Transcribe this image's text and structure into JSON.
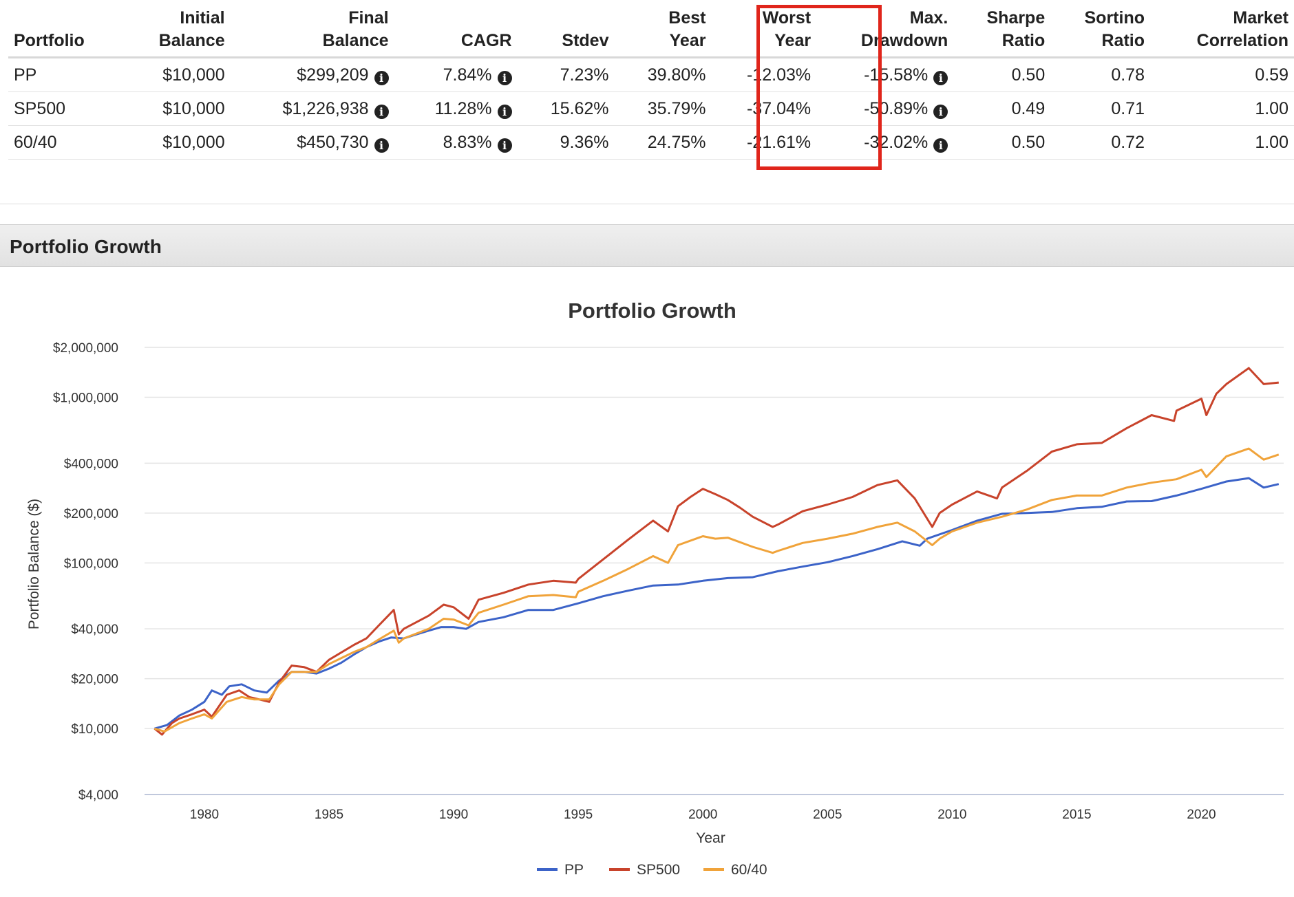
{
  "table": {
    "headers": [
      [
        "",
        "Portfolio"
      ],
      [
        "Initial",
        "Balance"
      ],
      [
        "Final",
        "Balance"
      ],
      [
        "",
        "CAGR"
      ],
      [
        "",
        "Stdev"
      ],
      [
        "Best",
        "Year"
      ],
      [
        "Worst",
        "Year"
      ],
      [
        "Max.",
        "Drawdown"
      ],
      [
        "Sharpe",
        "Ratio"
      ],
      [
        "Sortino",
        "Ratio"
      ],
      [
        "Market",
        "Correlation"
      ]
    ],
    "rows": [
      {
        "portfolio": "PP",
        "initial": "$10,000",
        "final": "$299,209",
        "cagr": "7.84%",
        "stdev": "7.23%",
        "best": "39.80%",
        "worst": "-12.03%",
        "drawdown": "-15.58%",
        "sharpe": "0.50",
        "sortino": "0.78",
        "corr": "0.59"
      },
      {
        "portfolio": "SP500",
        "initial": "$10,000",
        "final": "$1,226,938",
        "cagr": "11.28%",
        "stdev": "15.62%",
        "best": "35.79%",
        "worst": "-37.04%",
        "drawdown": "-50.89%",
        "sharpe": "0.49",
        "sortino": "0.71",
        "corr": "1.00"
      },
      {
        "portfolio": "60/40",
        "initial": "$10,000",
        "final": "$450,730",
        "cagr": "8.83%",
        "stdev": "9.36%",
        "best": "24.75%",
        "worst": "-21.61%",
        "drawdown": "-32.02%",
        "sharpe": "0.50",
        "sortino": "0.72",
        "corr": "1.00"
      }
    ],
    "highlight_color": "#e0251b",
    "info_icon": "info-circle-icon"
  },
  "section": {
    "title": "Portfolio Growth"
  },
  "chart_data": {
    "type": "line",
    "title": "Portfolio Growth",
    "xlabel": "Year",
    "ylabel": "Portfolio Balance ($)",
    "yscale": "log",
    "ylim": [
      4000,
      2000000
    ],
    "xlim": [
      1977.6,
      2023.3
    ],
    "yticks": [
      4000,
      10000,
      20000,
      40000,
      100000,
      200000,
      400000,
      1000000,
      2000000
    ],
    "ytick_labels": [
      "$4,000",
      "$10,000",
      "$20,000",
      "$40,000",
      "$100,000",
      "$200,000",
      "$400,000",
      "$1,000,000",
      "$2,000,000"
    ],
    "xticks": [
      1980,
      1985,
      1990,
      1995,
      2000,
      2005,
      2010,
      2015,
      2020
    ],
    "xtick_labels": [
      "1980",
      "1985",
      "1990",
      "1995",
      "2000",
      "2005",
      "2010",
      "2015",
      "2020"
    ],
    "legend_position": "bottom-center",
    "series": [
      {
        "name": "PP",
        "color": "#3c63c8",
        "points": [
          [
            1978,
            10000
          ],
          [
            1978.5,
            10500
          ],
          [
            1979,
            12000
          ],
          [
            1979.5,
            13000
          ],
          [
            1980,
            14500
          ],
          [
            1980.3,
            17000
          ],
          [
            1980.7,
            16000
          ],
          [
            1981,
            18000
          ],
          [
            1981.5,
            18500
          ],
          [
            1982,
            17000
          ],
          [
            1982.5,
            16500
          ],
          [
            1983,
            19500
          ],
          [
            1983.5,
            22000
          ],
          [
            1984,
            22000
          ],
          [
            1984.5,
            21500
          ],
          [
            1985,
            23000
          ],
          [
            1985.5,
            25000
          ],
          [
            1986,
            28000
          ],
          [
            1986.5,
            31000
          ],
          [
            1987,
            33500
          ],
          [
            1987.5,
            35500
          ],
          [
            1988,
            35000
          ],
          [
            1988.5,
            37000
          ],
          [
            1989,
            39000
          ],
          [
            1989.5,
            41000
          ],
          [
            1990,
            41000
          ],
          [
            1990.5,
            40000
          ],
          [
            1991,
            44000
          ],
          [
            1992,
            47000
          ],
          [
            1993,
            52000
          ],
          [
            1994,
            52000
          ],
          [
            1995,
            57000
          ],
          [
            1996,
            63000
          ],
          [
            1997,
            68000
          ],
          [
            1998,
            73000
          ],
          [
            1999,
            74000
          ],
          [
            2000,
            78000
          ],
          [
            2001,
            81000
          ],
          [
            2002,
            82000
          ],
          [
            2003,
            89000
          ],
          [
            2004,
            95000
          ],
          [
            2005,
            101000
          ],
          [
            2006,
            110000
          ],
          [
            2007,
            121000
          ],
          [
            2008,
            135000
          ],
          [
            2008.7,
            127000
          ],
          [
            2009,
            140000
          ],
          [
            2010,
            158000
          ],
          [
            2011,
            180000
          ],
          [
            2012,
            198000
          ],
          [
            2013,
            200000
          ],
          [
            2014,
            203000
          ],
          [
            2015,
            214000
          ],
          [
            2016,
            218000
          ],
          [
            2017,
            235000
          ],
          [
            2018,
            236000
          ],
          [
            2019,
            255000
          ],
          [
            2020,
            280000
          ],
          [
            2021,
            310000
          ],
          [
            2021.9,
            325000
          ],
          [
            2022.5,
            285000
          ],
          [
            2023.1,
            299209
          ]
        ]
      },
      {
        "name": "SP500",
        "color": "#c8432b",
        "points": [
          [
            1978,
            10000
          ],
          [
            1978.3,
            9200
          ],
          [
            1978.7,
            10800
          ],
          [
            1979,
            11500
          ],
          [
            1979.5,
            12200
          ],
          [
            1980,
            13000
          ],
          [
            1980.3,
            11800
          ],
          [
            1980.9,
            16000
          ],
          [
            1981.4,
            17000
          ],
          [
            1981.8,
            15500
          ],
          [
            1982.6,
            14500
          ],
          [
            1983,
            19000
          ],
          [
            1983.5,
            24000
          ],
          [
            1984,
            23500
          ],
          [
            1984.5,
            22000
          ],
          [
            1985,
            26000
          ],
          [
            1986,
            32000
          ],
          [
            1986.5,
            35000
          ],
          [
            1987,
            42000
          ],
          [
            1987.6,
            52000
          ],
          [
            1987.8,
            37000
          ],
          [
            1988,
            40000
          ],
          [
            1989,
            48000
          ],
          [
            1989.6,
            56000
          ],
          [
            1990,
            54000
          ],
          [
            1990.6,
            46000
          ],
          [
            1991,
            60000
          ],
          [
            1992,
            66000
          ],
          [
            1993,
            74000
          ],
          [
            1994,
            78000
          ],
          [
            1994.9,
            76000
          ],
          [
            1995,
            80000
          ],
          [
            1996,
            105000
          ],
          [
            1997,
            138000
          ],
          [
            1998,
            180000
          ],
          [
            1998.6,
            155000
          ],
          [
            1999,
            220000
          ],
          [
            1999.5,
            250000
          ],
          [
            2000,
            280000
          ],
          [
            2000.5,
            260000
          ],
          [
            2001,
            240000
          ],
          [
            2001.5,
            215000
          ],
          [
            2002,
            190000
          ],
          [
            2002.8,
            165000
          ],
          [
            2003,
            170000
          ],
          [
            2004,
            205000
          ],
          [
            2005,
            225000
          ],
          [
            2006,
            250000
          ],
          [
            2007,
            295000
          ],
          [
            2007.8,
            315000
          ],
          [
            2008.5,
            245000
          ],
          [
            2009.2,
            165000
          ],
          [
            2009.5,
            200000
          ],
          [
            2010,
            225000
          ],
          [
            2011,
            270000
          ],
          [
            2011.8,
            245000
          ],
          [
            2012,
            285000
          ],
          [
            2013,
            360000
          ],
          [
            2014,
            470000
          ],
          [
            2015,
            520000
          ],
          [
            2016,
            530000
          ],
          [
            2017,
            650000
          ],
          [
            2018,
            780000
          ],
          [
            2018.9,
            720000
          ],
          [
            2019,
            830000
          ],
          [
            2020,
            980000
          ],
          [
            2020.2,
            780000
          ],
          [
            2020.6,
            1050000
          ],
          [
            2021,
            1200000
          ],
          [
            2021.9,
            1500000
          ],
          [
            2022.5,
            1200000
          ],
          [
            2023.1,
            1226938
          ]
        ]
      },
      {
        "name": "60/40",
        "color": "#f0a33a",
        "points": [
          [
            1978,
            10000
          ],
          [
            1978.4,
            9600
          ],
          [
            1979,
            10800
          ],
          [
            1979.5,
            11500
          ],
          [
            1980,
            12200
          ],
          [
            1980.3,
            11500
          ],
          [
            1980.9,
            14500
          ],
          [
            1981.5,
            15500
          ],
          [
            1982,
            15000
          ],
          [
            1982.6,
            15000
          ],
          [
            1983,
            18500
          ],
          [
            1983.5,
            22000
          ],
          [
            1984,
            22000
          ],
          [
            1984.5,
            22000
          ],
          [
            1985,
            24500
          ],
          [
            1986,
            29000
          ],
          [
            1986.5,
            31000
          ],
          [
            1987,
            34500
          ],
          [
            1987.6,
            39000
          ],
          [
            1987.8,
            33000
          ],
          [
            1988,
            35000
          ],
          [
            1989,
            40000
          ],
          [
            1989.6,
            46000
          ],
          [
            1990,
            45500
          ],
          [
            1990.6,
            42000
          ],
          [
            1991,
            50000
          ],
          [
            1992,
            56000
          ],
          [
            1993,
            63000
          ],
          [
            1994,
            64000
          ],
          [
            1994.9,
            62000
          ],
          [
            1995,
            67000
          ],
          [
            1996,
            78000
          ],
          [
            1997,
            92000
          ],
          [
            1998,
            110000
          ],
          [
            1998.6,
            100000
          ],
          [
            1999,
            128000
          ],
          [
            2000,
            145000
          ],
          [
            2000.5,
            140000
          ],
          [
            2001,
            142000
          ],
          [
            2002,
            125000
          ],
          [
            2002.8,
            115000
          ],
          [
            2003,
            118000
          ],
          [
            2004,
            132000
          ],
          [
            2005,
            140000
          ],
          [
            2006,
            150000
          ],
          [
            2007,
            165000
          ],
          [
            2007.8,
            175000
          ],
          [
            2008.5,
            155000
          ],
          [
            2009.2,
            128000
          ],
          [
            2009.5,
            140000
          ],
          [
            2010,
            155000
          ],
          [
            2011,
            175000
          ],
          [
            2012,
            190000
          ],
          [
            2013,
            210000
          ],
          [
            2014,
            240000
          ],
          [
            2015,
            255000
          ],
          [
            2016,
            255000
          ],
          [
            2017,
            285000
          ],
          [
            2018,
            305000
          ],
          [
            2019,
            320000
          ],
          [
            2020,
            365000
          ],
          [
            2020.2,
            330000
          ],
          [
            2021,
            440000
          ],
          [
            2021.9,
            490000
          ],
          [
            2022.5,
            420000
          ],
          [
            2023.1,
            450730
          ]
        ]
      }
    ]
  }
}
